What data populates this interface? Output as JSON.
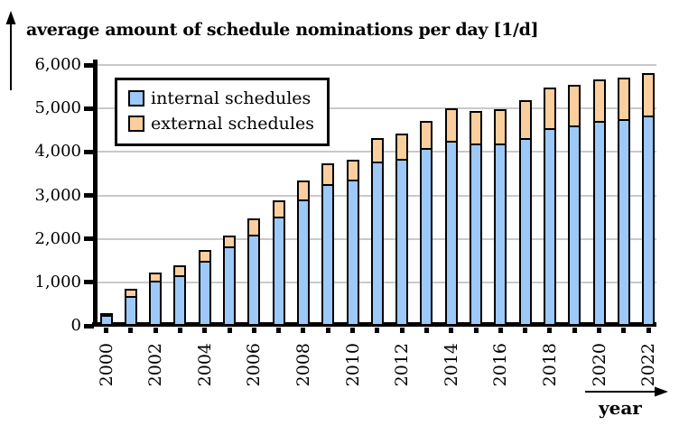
{
  "title": "average amount of schedule nominations per day [1/d]",
  "xaxis_label": "year",
  "chart_data": {
    "type": "bar",
    "stacked": true,
    "title": "average amount of schedule nominations per day [1/d]",
    "xlabel": "year",
    "ylabel": "average amount of schedule nominations per day [1/d]",
    "ylim": [
      0,
      6000
    ],
    "ytick_interval": 1000,
    "ytick_labels": [
      "0",
      "1,000",
      "2,000",
      "3,000",
      "4,000",
      "5,000",
      "6,000"
    ],
    "grid": "horizontal-gridlines",
    "legend_position": "inside-top-left",
    "categories": [
      "2000",
      "2001",
      "2002",
      "2003",
      "2004",
      "2005",
      "2006",
      "2007",
      "2008",
      "2009",
      "2010",
      "2011",
      "2012",
      "2013",
      "2014",
      "2015",
      "2016",
      "2017",
      "2018",
      "2019",
      "2020",
      "2021",
      "2022"
    ],
    "xtick_labels_shown": [
      "2000",
      "2002",
      "2004",
      "2006",
      "2008",
      "2010",
      "2012",
      "2014",
      "2016",
      "2018",
      "2020",
      "2022"
    ],
    "series": [
      {
        "name": "internal schedules",
        "color": "#9CC9F7",
        "values": [
          200,
          650,
          1000,
          1130,
          1450,
          1780,
          2060,
          2480,
          2860,
          3210,
          3320,
          3730,
          3800,
          4050,
          4210,
          4150,
          4150,
          4280,
          4510,
          4560,
          4670,
          4710,
          4790
        ]
      },
      {
        "name": "external schedules",
        "color": "#FBCE9D",
        "values": [
          100,
          200,
          230,
          260,
          300,
          300,
          410,
          410,
          480,
          520,
          510,
          590,
          630,
          660,
          790,
          800,
          840,
          900,
          980,
          980,
          1000,
          990,
          1030
        ]
      }
    ],
    "colors": {
      "gridline": "#C9C9C9",
      "axis": "#000000",
      "background": "#FFFFFF"
    }
  }
}
